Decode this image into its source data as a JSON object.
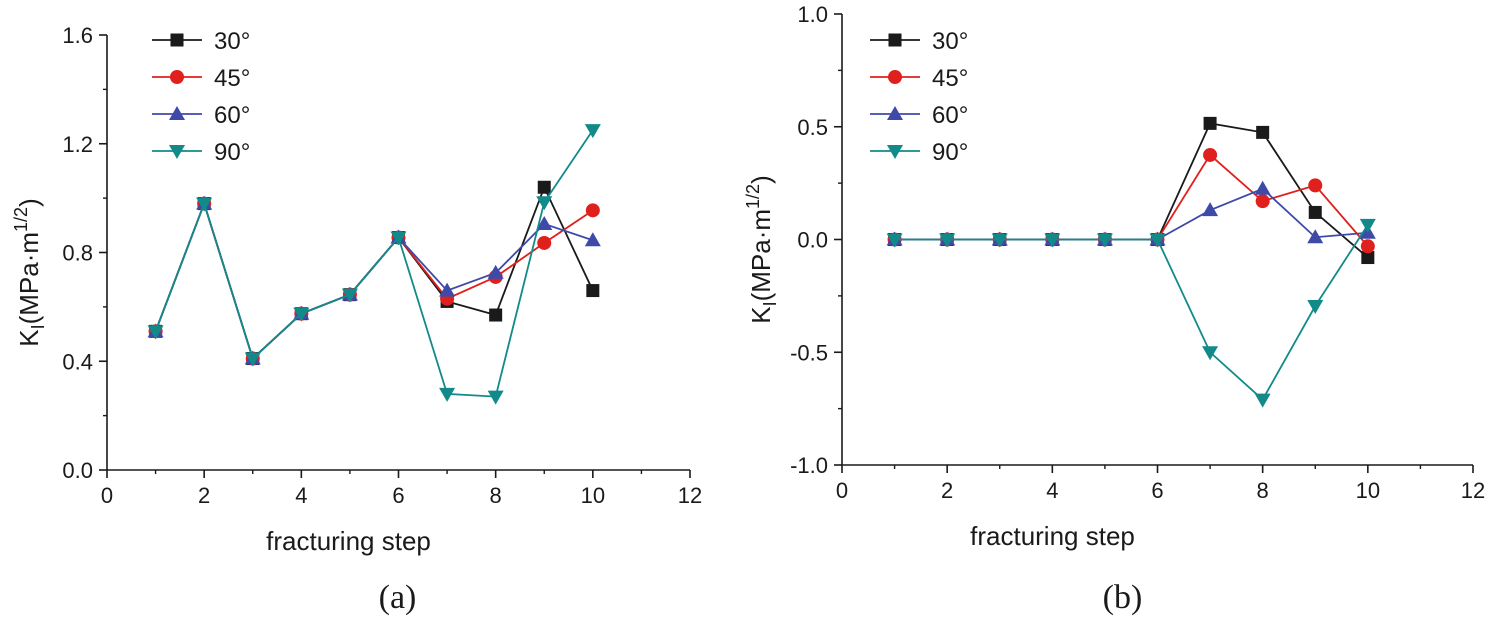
{
  "chart_data": [
    {
      "type": "line",
      "panel_label": "(a)",
      "xlabel": "fracturing step",
      "ylabel": {
        "main": "K",
        "sub": "I",
        "unit_main": "(MPa·m",
        "unit_sup": "1/2",
        "unit_close": ")"
      },
      "xlim": [
        0,
        12
      ],
      "ylim": [
        0.0,
        1.6
      ],
      "xticks": [
        "0",
        "2",
        "4",
        "6",
        "8",
        "10",
        "12"
      ],
      "yticks": [
        "0.0",
        "0.4",
        "0.8",
        "1.2",
        "1.6"
      ],
      "legend_position": "top-left",
      "x": [
        1,
        2,
        3,
        4,
        5,
        6,
        7,
        8,
        9,
        10
      ],
      "series": [
        {
          "name": "30°",
          "color": "#1a1a1a",
          "marker": "square",
          "values": [
            0.51,
            0.98,
            0.41,
            0.575,
            0.645,
            0.855,
            0.62,
            0.57,
            1.04,
            0.66
          ]
        },
        {
          "name": "45°",
          "color": "#e0201c",
          "marker": "circle",
          "values": [
            0.51,
            0.98,
            0.41,
            0.575,
            0.645,
            0.855,
            0.63,
            0.71,
            0.835,
            0.955
          ]
        },
        {
          "name": "60°",
          "color": "#3f4aa8",
          "marker": "triangle-up",
          "values": [
            0.51,
            0.98,
            0.41,
            0.575,
            0.645,
            0.855,
            0.66,
            0.725,
            0.905,
            0.845
          ]
        },
        {
          "name": "90°",
          "color": "#138a8a",
          "marker": "triangle-down",
          "values": [
            0.51,
            0.98,
            0.41,
            0.575,
            0.645,
            0.855,
            0.28,
            0.27,
            0.985,
            1.25
          ]
        }
      ]
    },
    {
      "type": "line",
      "panel_label": "(b)",
      "xlabel": "fracturing step",
      "ylabel": {
        "main": "K",
        "sub": "I",
        "unit_main": "(MPa·m",
        "unit_sup": "1/2",
        "unit_close": ")"
      },
      "xlim": [
        0,
        12
      ],
      "ylim": [
        -1.0,
        1.0
      ],
      "xticks": [
        "0",
        "2",
        "4",
        "6",
        "8",
        "10",
        "12"
      ],
      "yticks": [
        "-1.0",
        "-0.5",
        "0.0",
        "0.5",
        "1.0"
      ],
      "legend_position": "top-left",
      "x": [
        1,
        2,
        3,
        4,
        5,
        6,
        7,
        8,
        9,
        10
      ],
      "series": [
        {
          "name": "30°",
          "color": "#1a1a1a",
          "marker": "square",
          "values": [
            0,
            0,
            0,
            0,
            0,
            0,
            0.515,
            0.475,
            0.12,
            -0.08
          ]
        },
        {
          "name": "45°",
          "color": "#e0201c",
          "marker": "circle",
          "values": [
            0,
            0,
            0,
            0,
            0,
            0,
            0.375,
            0.17,
            0.24,
            -0.03
          ]
        },
        {
          "name": "60°",
          "color": "#3f4aa8",
          "marker": "triangle-up",
          "values": [
            0,
            0,
            0,
            0,
            0,
            0,
            0.13,
            0.225,
            0.01,
            0.03
          ]
        },
        {
          "name": "90°",
          "color": "#138a8a",
          "marker": "triangle-down",
          "values": [
            0,
            0,
            0,
            0,
            0,
            0,
            -0.5,
            -0.71,
            -0.295,
            0.065
          ]
        }
      ]
    }
  ]
}
